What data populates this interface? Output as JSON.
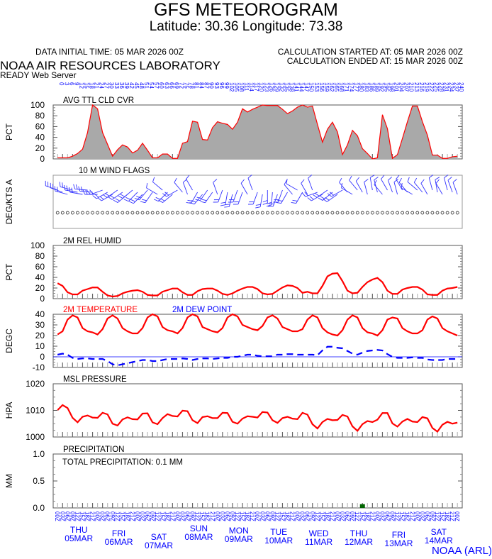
{
  "header": {
    "title": "GFS METEOROGRAM",
    "subtitle": "Latitude: 30.36 Longitude:  73.38",
    "initial_time": "DATA INITIAL TIME: 05 MAR 2026 00Z",
    "calc_started": "CALCULATION STARTED AT: 05 MAR 2026 00Z",
    "calc_ended": "CALCULATION ENDED AT: 15 MAR 2026 00Z",
    "org": "NOAA AIR RESOURCES LABORATORY",
    "server": "READY Web Server",
    "footer": "NOAA (ARL)"
  },
  "colors": {
    "red": "#ff0000",
    "blue": "#0000ff",
    "fill": "#a9a9a9",
    "precip": "#006400"
  },
  "chart_data": [
    {
      "type": "area",
      "title": "AVG TTL CLD CVR",
      "ylabel": "PCT",
      "ylim": [
        0,
        100
      ],
      "yticks": [
        "100",
        "80",
        "60",
        "40",
        "20",
        "0"
      ],
      "values": [
        2,
        2,
        2,
        5,
        10,
        18,
        49,
        100,
        93,
        49,
        27,
        5,
        17,
        26,
        22,
        11,
        16,
        29,
        16,
        2,
        2,
        9,
        9,
        1,
        1,
        29,
        32,
        70,
        68,
        36,
        35,
        58,
        69,
        66,
        64,
        55,
        68,
        93,
        87,
        92,
        96,
        100,
        99,
        99,
        99,
        92,
        84,
        89,
        96,
        100,
        96,
        98,
        64,
        31,
        55,
        68,
        50,
        8,
        26,
        53,
        43,
        19,
        10,
        0,
        2,
        82,
        56,
        1,
        8,
        38,
        69,
        98,
        98,
        69,
        44,
        7,
        7,
        1,
        1,
        4,
        5
      ]
    },
    {
      "type": "wind_barbs",
      "title": "10 M  WIND FLAGS",
      "ylabel": "DEG/KTS  A",
      "dir_deg": [
        290,
        290,
        285,
        285,
        280,
        280,
        275,
        275,
        270,
        250,
        240,
        240,
        235,
        235,
        230,
        230,
        225,
        225,
        220,
        215,
        300,
        310,
        225,
        230,
        240,
        320,
        340,
        330,
        210,
        220,
        215,
        215,
        340,
        200,
        190,
        195,
        200,
        200,
        330,
        340,
        200,
        190,
        180,
        185,
        200,
        200,
        210,
        320,
        300,
        210,
        330,
        340,
        250,
        240,
        235,
        230,
        235,
        240,
        320,
        300,
        320,
        330,
        345,
        350,
        345,
        320,
        330,
        340,
        345,
        330,
        320,
        300,
        310,
        320,
        330,
        345,
        350,
        330,
        345,
        340,
        340
      ],
      "speed_kt": [
        12,
        12,
        12,
        12,
        12,
        10,
        10,
        10,
        10,
        8,
        8,
        8,
        8,
        8,
        8,
        8,
        8,
        8,
        8,
        8,
        6,
        6,
        8,
        8,
        8,
        6,
        6,
        6,
        8,
        8,
        8,
        8,
        6,
        8,
        8,
        8,
        8,
        8,
        6,
        6,
        8,
        8,
        8,
        8,
        8,
        8,
        8,
        6,
        6,
        8,
        6,
        6,
        8,
        8,
        8,
        8,
        8,
        8,
        6,
        6,
        6,
        6,
        6,
        6,
        6,
        6,
        6,
        6,
        6,
        6,
        6,
        6,
        6,
        6,
        6,
        6,
        6,
        6,
        6,
        6,
        6
      ]
    },
    {
      "type": "line",
      "title": "2M REL HUMID",
      "ylabel": "PCT",
      "ylim": [
        0,
        100
      ],
      "yticks": [
        "100",
        "80",
        "60",
        "40",
        "20",
        "0"
      ],
      "values": [
        29,
        24,
        12,
        8,
        8,
        15,
        18,
        21,
        21,
        13,
        6,
        4,
        5,
        10,
        13,
        15,
        16,
        13,
        7,
        6,
        6,
        13,
        16,
        19,
        19,
        12,
        7,
        7,
        14,
        18,
        19,
        19,
        15,
        9,
        7,
        10,
        15,
        19,
        22,
        22,
        18,
        10,
        8,
        9,
        15,
        21,
        25,
        24,
        20,
        11,
        13,
        10,
        10,
        24,
        42,
        47,
        48,
        33,
        15,
        10,
        11,
        22,
        31,
        36,
        39,
        31,
        15,
        9,
        9,
        17,
        20,
        22,
        22,
        17,
        8,
        7,
        7,
        15,
        19,
        20,
        22
      ]
    },
    {
      "type": "line",
      "title": "2M TEMPERATURE",
      "title2": "2M   DEW POINT",
      "ylabel": "DEGC",
      "ylim": [
        -10,
        40
      ],
      "yticks": [
        "40",
        "30",
        "20",
        "10",
        "0",
        "-10"
      ],
      "series": [
        {
          "name": "2M TEMPERATURE",
          "values": [
            21,
            24,
            35,
            39,
            37,
            27,
            24,
            23,
            21,
            26,
            36,
            39,
            36,
            27,
            24,
            22,
            22,
            27,
            37,
            40,
            38,
            28,
            25,
            24,
            22,
            27,
            37,
            40,
            38,
            28,
            26,
            24,
            23,
            27,
            37,
            40,
            38,
            30,
            28,
            26,
            25,
            29,
            37,
            39,
            36,
            28,
            26,
            24,
            24,
            26,
            35,
            39,
            37,
            27,
            23,
            21,
            20,
            25,
            35,
            39,
            37,
            27,
            23,
            22,
            20,
            25,
            35,
            37,
            36,
            27,
            24,
            22,
            22,
            25,
            35,
            38,
            36,
            27,
            24,
            22,
            20
          ]
        },
        {
          "name": "2M DEW POINT",
          "values": [
            2,
            3,
            2,
            -1,
            -2,
            -1.5,
            -1.5,
            -2,
            -2,
            -2,
            -4,
            -7,
            -8,
            -7,
            -6,
            -5,
            -4,
            -3,
            -3,
            -4,
            -4,
            -3,
            -2,
            -2,
            -2,
            -1.5,
            -2,
            -3,
            -2,
            -1.5,
            -1.5,
            -2,
            -1.5,
            -1,
            -1,
            0,
            0,
            1,
            2,
            2,
            1,
            0.5,
            0.5,
            0.5,
            2,
            2,
            2.5,
            2.5,
            2,
            2,
            2,
            2,
            1.5,
            6,
            9.5,
            9.5,
            8.5,
            8,
            5.5,
            3,
            2,
            4,
            5.5,
            6,
            6.5,
            6,
            2.5,
            0,
            -1,
            -1,
            -1,
            -0.5,
            -1,
            -1,
            -2.5,
            -3,
            -3,
            -3,
            -2,
            -2,
            -2
          ]
        }
      ]
    },
    {
      "type": "line",
      "title": "MSL PRESSURE",
      "ylabel": "HPA",
      "ylim": [
        1000,
        1020
      ],
      "yticks": [
        "1020",
        "1010",
        "1000"
      ],
      "values": [
        1010.1,
        1012,
        1010.9,
        1007.2,
        1005.5,
        1007.6,
        1008.1,
        1007.3,
        1007.2,
        1009.1,
        1008.5,
        1005,
        1004.3,
        1006.6,
        1007.4,
        1006.7,
        1006.6,
        1008.8,
        1008.9,
        1005.5,
        1004.8,
        1007.1,
        1008.6,
        1007.9,
        1007.7,
        1009.9,
        1009.7,
        1006.3,
        1005.2,
        1007.5,
        1007.8,
        1007.1,
        1007.1,
        1009.1,
        1009,
        1005.7,
        1005,
        1006.9,
        1007.8,
        1007.6,
        1007.3,
        1009.4,
        1009.2,
        1006.3,
        1005.3,
        1007.1,
        1007.6,
        1006.9,
        1006.7,
        1009.1,
        1008.4,
        1004.8,
        1003.2,
        1005.6,
        1006.8,
        1006.3,
        1006.4,
        1008.3,
        1007.7,
        1004,
        1002.3,
        1004.8,
        1006,
        1005.6,
        1006.5,
        1009,
        1009,
        1005.1,
        1003.9,
        1005.8,
        1006.8,
        1005.8,
        1005.6,
        1007.5,
        1007,
        1003.4,
        1002,
        1004.6,
        1005.7,
        1005,
        1005.4
      ]
    },
    {
      "type": "bar",
      "title": "PRECIPITATION",
      "total_label": "TOTAL PRECIPITATION:   0.1 MM",
      "ylabel": "MM",
      "ylim": [
        0,
        1
      ],
      "yticks": [
        "1.0",
        "0.5",
        "0.0"
      ],
      "nonzero": [
        {
          "index": 61,
          "value": 0.07
        }
      ]
    }
  ],
  "x_axis": {
    "forecast_hours_start": 0,
    "forecast_hours_step": 3,
    "count": 81,
    "hour_labels": [
      "00Z",
      "03Z",
      "06Z",
      "09Z",
      "12Z",
      "15Z",
      "18Z",
      "21Z"
    ],
    "days": [
      {
        "dow": "THU",
        "date": "05MAR"
      },
      {
        "dow": "FRI",
        "date": "06MAR"
      },
      {
        "dow": "SAT",
        "date": "07MAR"
      },
      {
        "dow": "SUN",
        "date": "08MAR"
      },
      {
        "dow": "MON",
        "date": "09MAR"
      },
      {
        "dow": "TUE",
        "date": "10MAR"
      },
      {
        "dow": "WED",
        "date": "11MAR"
      },
      {
        "dow": "THU",
        "date": "12MAR"
      },
      {
        "dow": "FRI",
        "date": "13MAR"
      },
      {
        "dow": "SAT",
        "date": "14MAR"
      }
    ]
  }
}
